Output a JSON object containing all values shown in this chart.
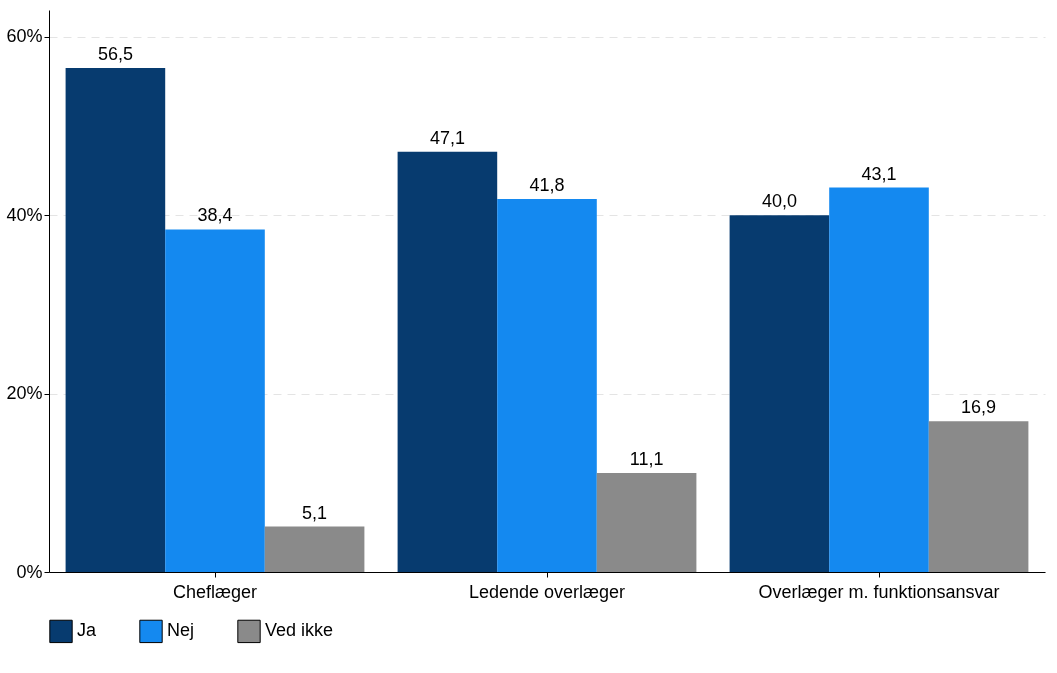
{
  "chart_data": {
    "type": "bar",
    "categories": [
      "Cheflæger",
      "Ledende overlæger",
      "Overlæger m. funktionsansvar"
    ],
    "series": [
      {
        "name": "Ja",
        "color": "#073b6f",
        "values": [
          56.5,
          47.1,
          40.0
        ],
        "value_labels": [
          "56,5",
          "47,1",
          "40,0"
        ]
      },
      {
        "name": "Nej",
        "color": "#1489f0",
        "values": [
          38.4,
          41.8,
          43.1
        ],
        "value_labels": [
          "38,4",
          "41,8",
          "43,1"
        ]
      },
      {
        "name": "Ved ikke",
        "color": "#8a8a8a",
        "values": [
          5.1,
          11.1,
          16.9
        ],
        "value_labels": [
          "5,1",
          "11,1",
          "16,9"
        ]
      }
    ],
    "ylim": [
      0,
      63
    ],
    "yticks": [
      {
        "value": 0,
        "label": "0%"
      },
      {
        "value": 20,
        "label": "20%"
      },
      {
        "value": 40,
        "label": "40%"
      },
      {
        "value": 60,
        "label": "60%"
      }
    ],
    "grid": "y",
    "legend": "bottom"
  }
}
